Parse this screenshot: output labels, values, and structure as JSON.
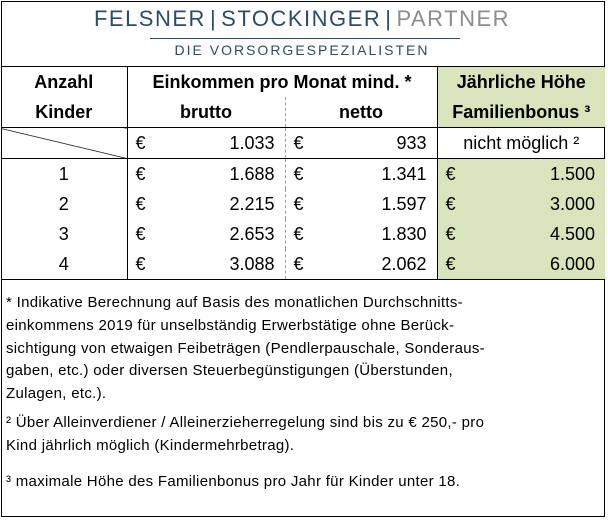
{
  "logo": {
    "name1": "FELSNER",
    "name2": "STOCKINGER",
    "name3": "PARTNER",
    "separator": "|",
    "tagline": "DIE VORSORGESPEZIALISTEN"
  },
  "header": {
    "col1_line1": "Anzahl",
    "col1_line2": "Kinder",
    "col2_line1": "Einkommen pro Monat mind. *",
    "col2_brutto": "brutto",
    "col2_netto": "netto",
    "col3_line1": "Jährliche Höhe",
    "col3_line2": "Familienbonus ³"
  },
  "currency": "€",
  "base_row": {
    "brutto": "1.033",
    "netto": "933",
    "bonus": "nicht möglich ²"
  },
  "rows": [
    {
      "kids": "1",
      "brutto": "1.688",
      "netto": "1.341",
      "bonus": "1.500"
    },
    {
      "kids": "2",
      "brutto": "2.215",
      "netto": "1.597",
      "bonus": "3.000"
    },
    {
      "kids": "3",
      "brutto": "2.653",
      "netto": "1.830",
      "bonus": "4.500"
    },
    {
      "kids": "4",
      "brutto": "3.088",
      "netto": "2.062",
      "bonus": "6.000"
    }
  ],
  "notes": {
    "note1": "* Indikative Berechnung auf Basis des monatlichen Durchschnitts-einkommens 2019 für unselbständig Erwerbstätige ohne Berück-sichtigung von etwaigen Feibeträgen (Pendlerpauschale, Sonderaus-gaben, etc.) oder diversen Steuerbegünstigungen (Überstunden, Zulagen, etc.).",
    "note1_lines": [
      "* Indikative Berechnung auf Basis des monatlichen Durchschnitts-",
      "einkommens 2019 für unselbständig Erwerbstätige ohne Berück-",
      "sichtigung von etwaigen Feibeträgen (Pendlerpauschale, Sonderaus-",
      "gaben, etc.) oder diversen Steuerbegünstigungen (Überstunden,",
      "Zulagen, etc.)."
    ],
    "note2_lines": [
      "² Über Alleinverdiener / Alleinerzieherregelung sind bis zu € 250,- pro",
      "Kind jährlich möglich (Kindermehrbetrag)."
    ],
    "note3": "³ maximale Höhe des Familienbonus pro Jahr für Kinder unter 18.",
    "colors": {
      "green": "#d8e4bc",
      "brand_blue": "#2b4a6e",
      "brand_grey": "#8c8c8c"
    }
  }
}
